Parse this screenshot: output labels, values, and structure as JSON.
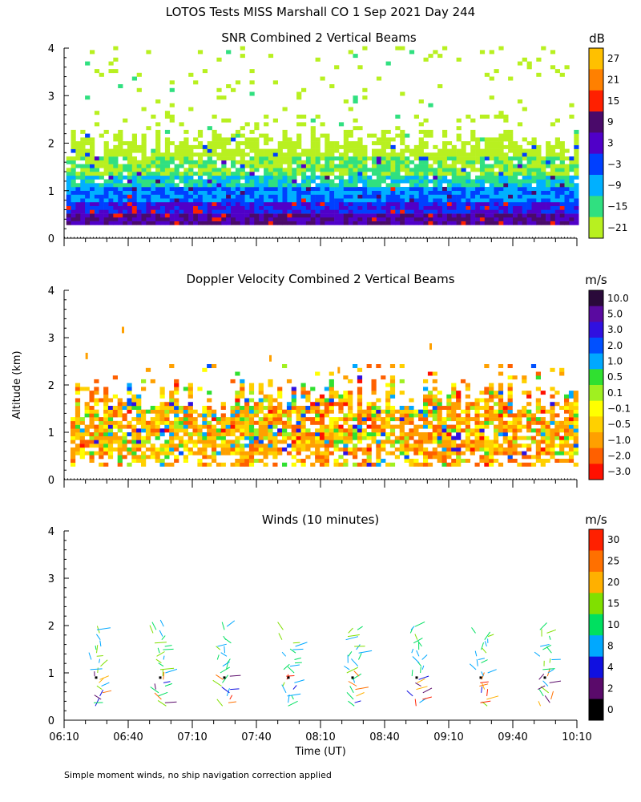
{
  "title": "LOTOS Tests MISS Marshall CO   1 Sep 2021 Day 244",
  "ylabel": "Altitude (km)",
  "xlabel": "Time (UT)",
  "footnote": "Simple moment winds, no ship navigation correction applied",
  "chart_data": [
    {
      "type": "heatmap",
      "title": "SNR Combined 2 Vertical Beams",
      "units": "dB",
      "xlim": [
        370,
        610
      ],
      "ylim": [
        0,
        4
      ],
      "yticks": [
        0,
        1,
        2,
        3,
        4
      ],
      "colorbar": {
        "labels": [
          "27",
          "21",
          "15",
          "9",
          "3",
          "−3",
          "−9",
          "−15",
          "−21"
        ],
        "colors": [
          "#ffc000",
          "#ff8000",
          "#ff2000",
          "#4a0a6a",
          "#5000c8",
          "#0040ff",
          "#00b0ff",
          "#30e080",
          "#b8f020"
        ]
      },
      "profile": [
        {
          "alt": 0.3,
          "dB": 9
        },
        {
          "alt": 0.5,
          "dB": 3
        },
        {
          "alt": 0.8,
          "dB": -3
        },
        {
          "alt": 1.1,
          "dB": -9
        },
        {
          "alt": 1.4,
          "dB": -15
        },
        {
          "alt": 1.8,
          "dB": -21
        },
        {
          "alt": 2.2,
          "dB": -21
        }
      ]
    },
    {
      "type": "heatmap",
      "title": "Doppler Velocity Combined 2 Vertical Beams",
      "units": "m/s",
      "xlim": [
        370,
        610
      ],
      "ylim": [
        0,
        4
      ],
      "yticks": [
        0,
        1,
        2,
        3,
        4
      ],
      "colorbar": {
        "labels": [
          "10.0",
          "5.0",
          "3.0",
          "2.0",
          "1.0",
          "0.5",
          "0.1",
          "−0.1",
          "−0.5",
          "−1.0",
          "−2.0",
          "−3.0"
        ],
        "colors": [
          "#2a0a3a",
          "#5a0aa0",
          "#3010e0",
          "#0050ff",
          "#00a8ff",
          "#30e030",
          "#a0f020",
          "#ffff00",
          "#ffd000",
          "#ffa000",
          "#ff6000",
          "#ff1000"
        ]
      },
      "typical_velocity_ms": [
        -1.0,
        -0.5
      ]
    },
    {
      "type": "scatter",
      "title": "Winds (10 minutes)",
      "units": "m/s",
      "xlim": [
        370,
        610
      ],
      "ylim": [
        0,
        4
      ],
      "yticks": [
        0,
        1,
        2,
        3,
        4
      ],
      "xticks": [
        "06:10",
        "06:40",
        "07:10",
        "07:40",
        "08:10",
        "08:40",
        "09:10",
        "09:40",
        "10:10"
      ],
      "colorbar": {
        "labels": [
          "30",
          "25",
          "20",
          "15",
          "10",
          "8",
          "4",
          "2",
          "0"
        ],
        "colors": [
          "#ff2000",
          "#ff7000",
          "#ffb000",
          "#80e000",
          "#00e060",
          "#00a8ff",
          "#1010e0",
          "#5a0a6a",
          "#000000"
        ]
      },
      "profile_times_min": [
        385,
        415,
        445,
        475,
        505,
        535,
        565,
        595
      ],
      "altitude_range_km": [
        0.3,
        2.0
      ]
    }
  ]
}
